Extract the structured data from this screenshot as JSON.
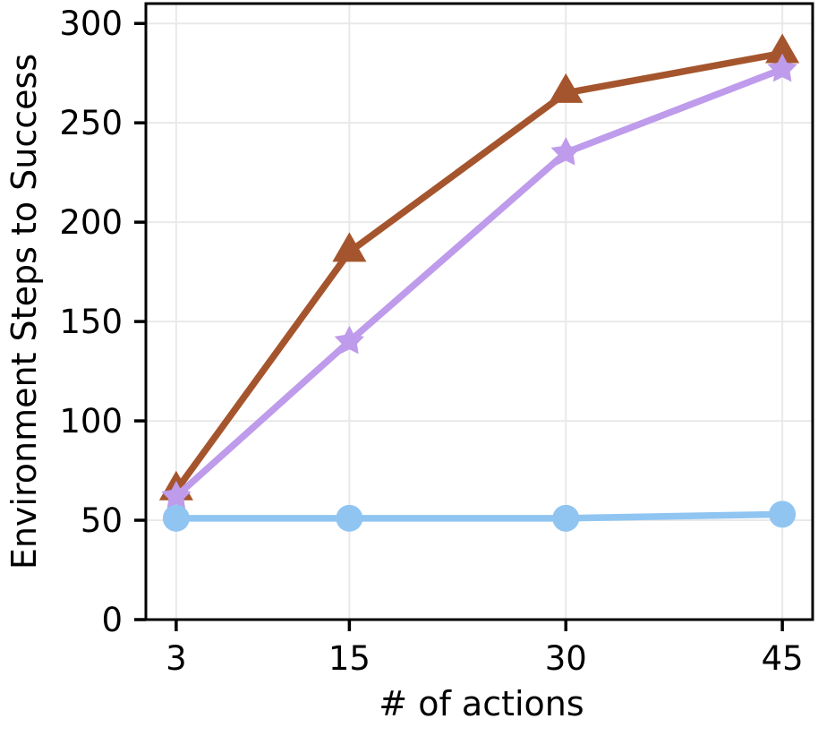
{
  "figure": {
    "background": "#ffffff",
    "spine_color": "#000000",
    "grid_color": "#e9e9e9",
    "tick_color": "#000000",
    "text_color": "#000000"
  },
  "chart_data": {
    "type": "line",
    "title": "",
    "xlabel": "# of actions",
    "ylabel": "Environment Steps to Success",
    "x": [
      3,
      15,
      30,
      45
    ],
    "xticks": [
      "3",
      "15",
      "30",
      "45"
    ],
    "xtick_values": [
      3,
      15,
      30,
      45
    ],
    "yticks": [
      "0",
      "50",
      "100",
      "150",
      "200",
      "250",
      "300"
    ],
    "ytick_values": [
      0,
      50,
      100,
      150,
      200,
      250,
      300
    ],
    "xlim": [
      0.9,
      47.1
    ],
    "ylim": [
      0,
      310
    ],
    "grid": true,
    "legend_position": "none",
    "series": [
      {
        "name": "triangle-series",
        "marker": "triangle",
        "color": "#A5552D",
        "values": [
          65,
          185,
          265,
          285
        ]
      },
      {
        "name": "star-series",
        "marker": "star",
        "color": "#BE9BEB",
        "values": [
          62,
          140,
          235,
          277
        ]
      },
      {
        "name": "circle-series",
        "marker": "circle",
        "color": "#90C5F2",
        "values": [
          51,
          51,
          51,
          53
        ]
      }
    ]
  }
}
